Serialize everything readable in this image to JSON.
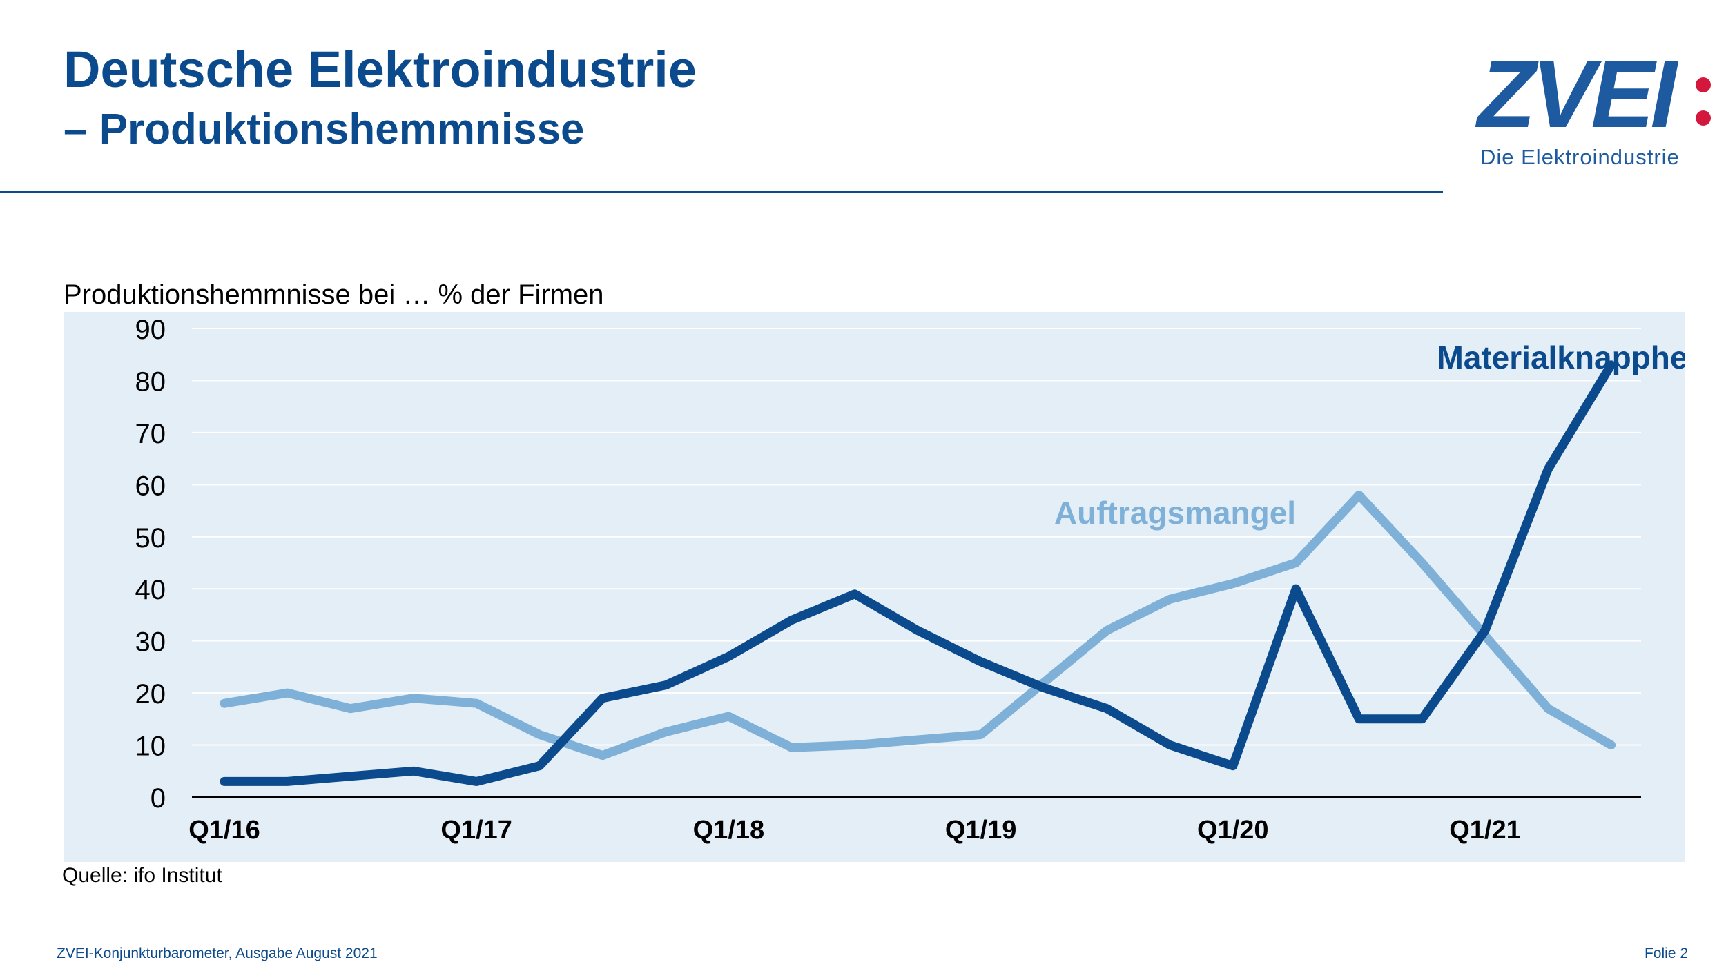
{
  "header": {
    "title": "Deutsche Elektroindustrie",
    "subtitle": "– Produktionshemmnisse"
  },
  "logo": {
    "wordmark": "ZVEI",
    "tagline": "Die Elektroindustrie",
    "colors": {
      "brand": "#1e5aa0",
      "dots": "#d4173d"
    }
  },
  "chart_caption": "Produktionshemmnisse bei … % der Firmen",
  "chart_data": {
    "type": "line",
    "ylim": [
      0,
      90
    ],
    "yticks": [
      0,
      10,
      20,
      30,
      40,
      50,
      60,
      70,
      80,
      90
    ],
    "x_tick_labels": [
      {
        "index": 0,
        "label": "Q1/16"
      },
      {
        "index": 4,
        "label": "Q1/17"
      },
      {
        "index": 8,
        "label": "Q1/18"
      },
      {
        "index": 12,
        "label": "Q1/19"
      },
      {
        "index": 16,
        "label": "Q1/20"
      },
      {
        "index": 20,
        "label": "Q1/21"
      }
    ],
    "x_count": 23,
    "grid": true,
    "background": "#e3eef6",
    "series": [
      {
        "name": "Auftragsmangel",
        "color": "#7fb0d7",
        "values": [
          18,
          20,
          17,
          19,
          18,
          12,
          8,
          12.5,
          15.5,
          9.5,
          10,
          11,
          12,
          22,
          32,
          38,
          41,
          45,
          58,
          45,
          31,
          17,
          10
        ]
      },
      {
        "name": "Materialknappheit",
        "color": "#0b4a8c",
        "values": [
          3,
          3,
          4,
          5,
          3,
          6,
          19,
          21.5,
          27,
          34,
          39,
          32,
          26,
          21,
          17,
          10,
          6,
          40,
          15,
          15,
          32,
          63,
          83
        ]
      }
    ]
  },
  "source": "Quelle: ifo Institut",
  "footer": {
    "left": "ZVEI-Konjunkturbarometer, Ausgabe August 2021",
    "right": "Folie 2"
  }
}
